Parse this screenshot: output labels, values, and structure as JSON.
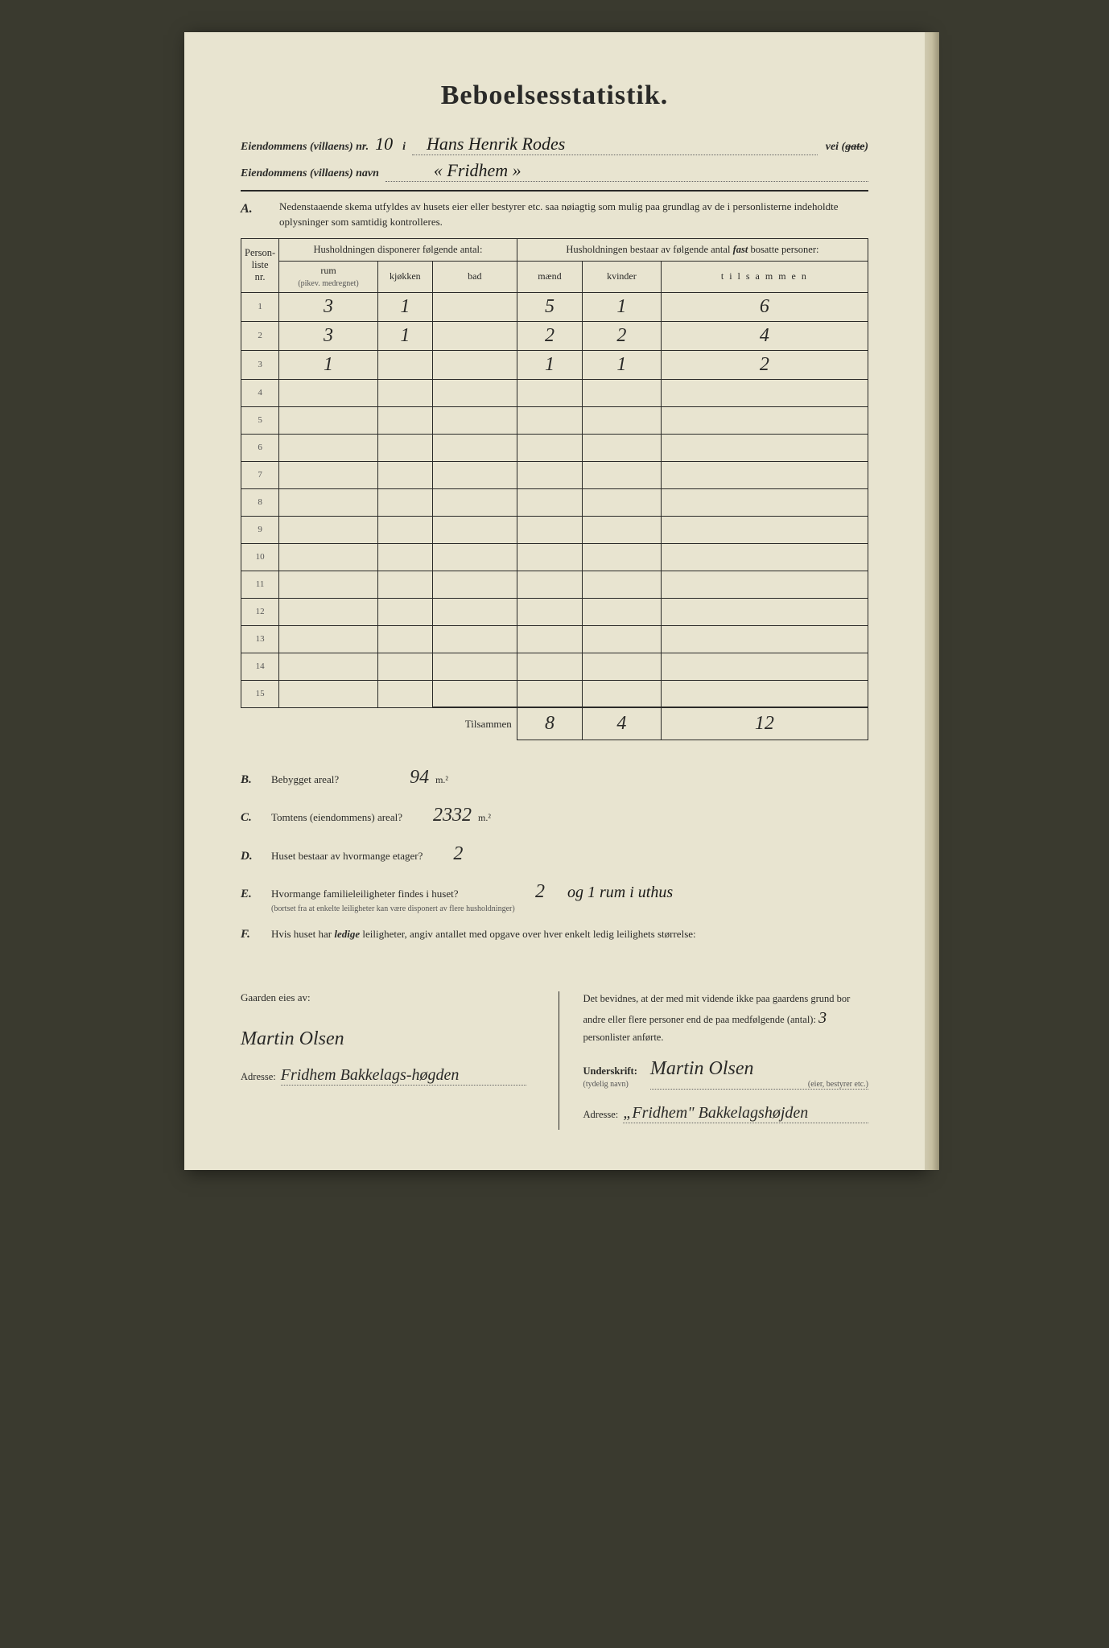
{
  "title": "Beboelsesstatistik.",
  "header": {
    "line1_label": "Eiendommens (villaens) nr.",
    "line1_nr": "10",
    "line1_mid": "i",
    "line1_value": "Hans Henrik Rodes",
    "line1_tail": "vei (gate)",
    "line2_label": "Eiendommens (villaens) navn",
    "line2_value": "« Fridhem »"
  },
  "sectionA": {
    "letter": "A.",
    "text": "Nedenstaaende skema utfyldes av husets eier eller bestyrer etc. saa nøiagtig som mulig paa grundlag av de i personlisterne indeholdte oplysninger som samtidig kontrolleres."
  },
  "table": {
    "col_personliste": "Person-\nliste\nnr.",
    "group1": "Husholdningen disponerer følgende antal:",
    "group2_a": "Husholdningen bestaar av følgende antal ",
    "group2_b": "fast",
    "group2_c": " bosatte personer:",
    "sub_rum": "rum",
    "sub_rum_note": "(pikev. medregnet)",
    "sub_kjokken": "kjøkken",
    "sub_bad": "bad",
    "sub_maend": "mænd",
    "sub_kvinder": "kvinder",
    "sub_tilsammen": "t i l s a m m e n",
    "row_labels": [
      "1",
      "2",
      "3",
      "4",
      "5",
      "6",
      "7",
      "8",
      "9",
      "10",
      "11",
      "12",
      "13",
      "14",
      "15"
    ],
    "rows": [
      {
        "rum": "3",
        "kjokken": "1",
        "bad": "",
        "maend": "5",
        "kvinder": "1",
        "tilsammen": "6"
      },
      {
        "rum": "3",
        "kjokken": "1",
        "bad": "",
        "maend": "2",
        "kvinder": "2",
        "tilsammen": "4"
      },
      {
        "rum": "1",
        "kjokken": "",
        "bad": "",
        "maend": "1",
        "kvinder": "1",
        "tilsammen": "2"
      }
    ],
    "sum_label": "Tilsammen",
    "sum": {
      "maend": "8",
      "kvinder": "4",
      "tilsammen": "12"
    }
  },
  "questions": {
    "B": {
      "letter": "B.",
      "text": "Bebygget areal?",
      "ans": "94",
      "unit": "m.²"
    },
    "C": {
      "letter": "C.",
      "text": "Tomtens (eiendommens) areal?",
      "ans": "2332",
      "unit": "m.²"
    },
    "D": {
      "letter": "D.",
      "text": "Huset bestaar av hvormange etager?",
      "ans": "2"
    },
    "E": {
      "letter": "E.",
      "text": "Hvormange familieleiligheter findes i huset?",
      "note": "(bortset fra at enkelte leiligheter kan være disponert av flere husholdninger)",
      "ans": "2",
      "extra": "og 1 rum i uthus"
    },
    "F": {
      "letter": "F.",
      "text_a": "Hvis huset har ",
      "text_b": "ledige",
      "text_c": " leiligheter, angiv antallet med opgave over hver enkelt ledig leilighets størrelse:"
    }
  },
  "footer": {
    "left": {
      "owner_label": "Gaarden eies av:",
      "owner_sig": "Martin Olsen",
      "addr_label": "Adresse:",
      "addr_value": "Fridhem Bakkelags-høgden"
    },
    "right": {
      "decl_a": "Det bevidnes, at der med mit vidende ikke paa gaardens grund bor andre eller flere personer end de paa medfølgende (antal): ",
      "decl_count": "3",
      "decl_b": " personlister anførte.",
      "sig_label": "Underskrift:",
      "sig_sub": "(tydelig navn)",
      "sig_value": "Martin Olsen",
      "sig_role": "(eier, bestyrer etc.)",
      "addr_label": "Adresse:",
      "addr_value": "„Fridhem\" Bakkelagshøjden"
    }
  }
}
